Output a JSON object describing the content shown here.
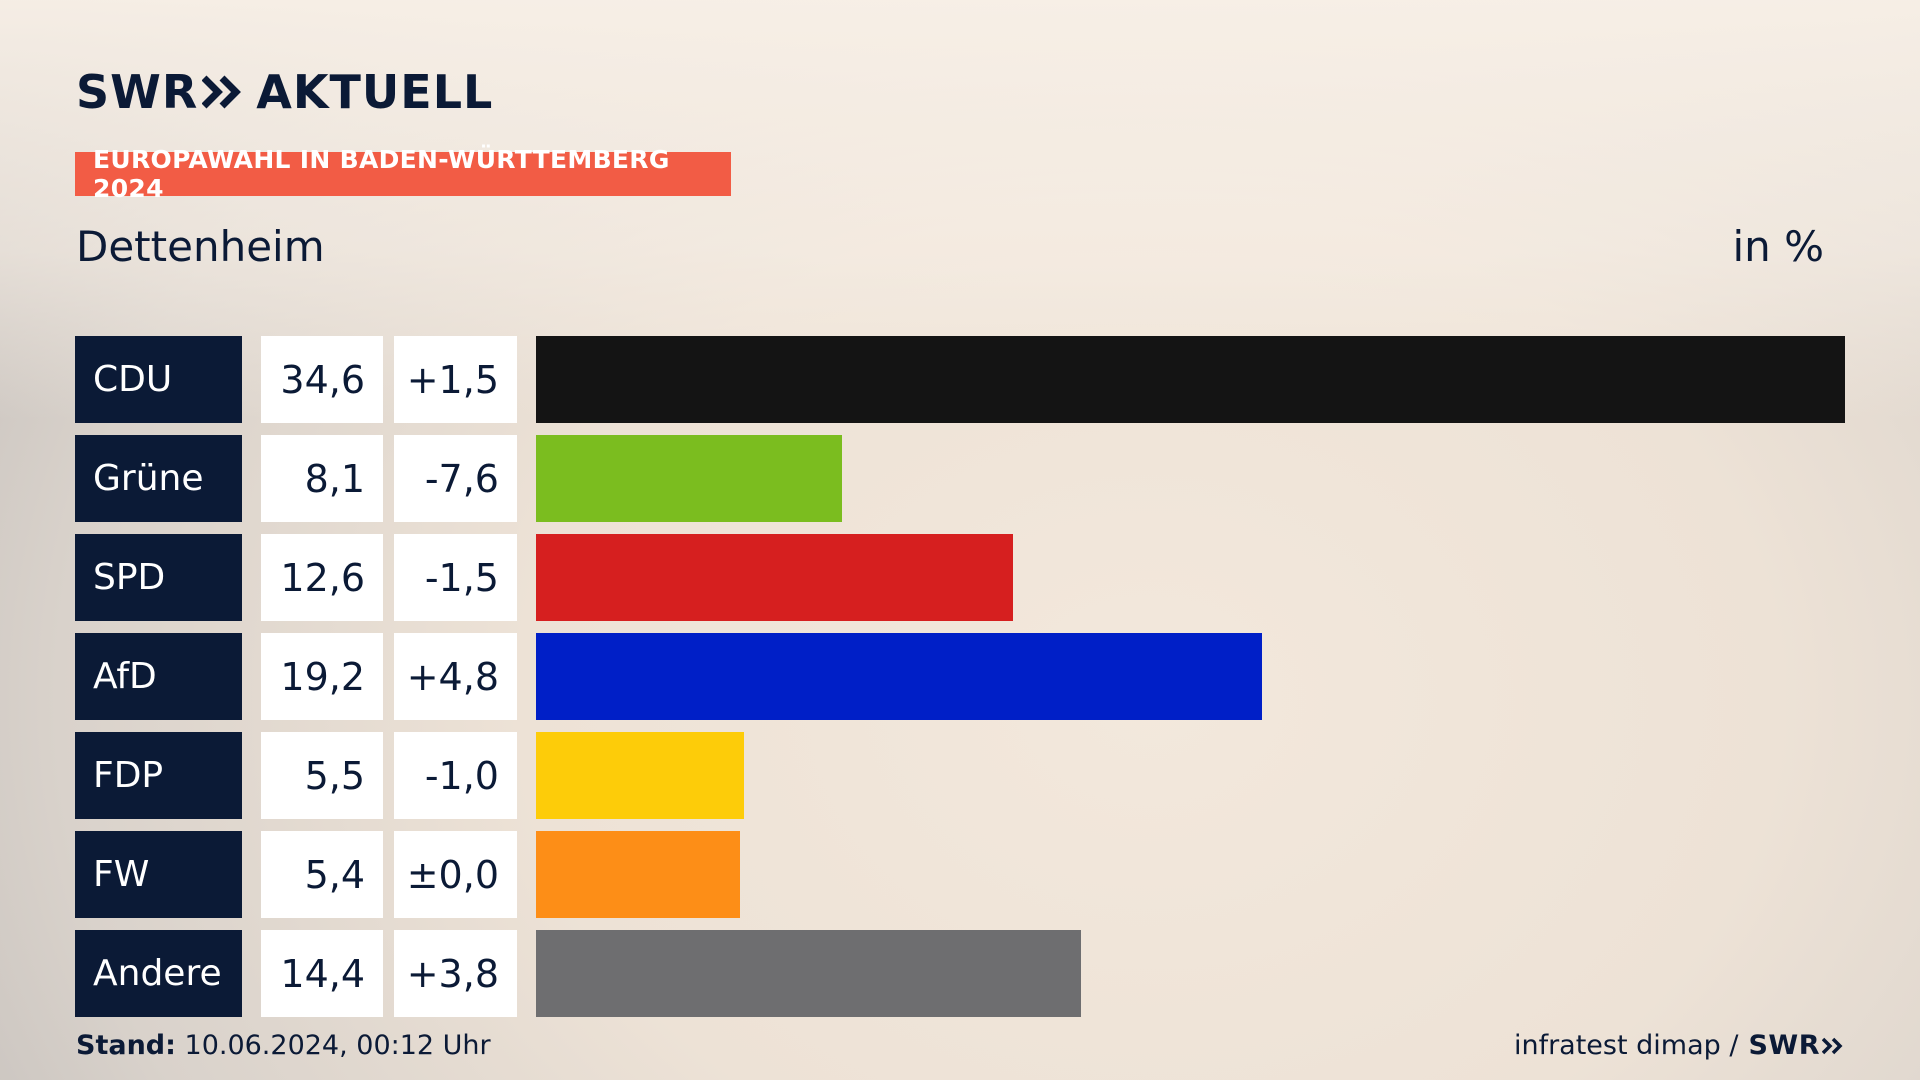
{
  "header": {
    "logo_text_left": "SWR",
    "logo_text_right": "AKTUELL",
    "banner": "EUROPAWAHL IN BADEN-WÜRTTEMBERG 2024",
    "place": "Dettenheim",
    "unit": "in %"
  },
  "colors": {
    "navy": "#0b1a36",
    "banner": "#f25c45"
  },
  "chart_data": {
    "type": "bar",
    "orientation": "horizontal",
    "title": "Dettenheim",
    "unit": "in %",
    "categories": [
      "CDU",
      "Grüne",
      "SPD",
      "AfD",
      "FDP",
      "FW",
      "Andere"
    ],
    "values": [
      34.6,
      8.1,
      12.6,
      19.2,
      5.5,
      5.4,
      14.4
    ],
    "value_labels": [
      "34,6",
      "8,1",
      "12,6",
      "19,2",
      "5,5",
      "5,4",
      "14,4"
    ],
    "change_labels": [
      "+1,5",
      "-7,6",
      "-1,5",
      "+4,8",
      "-1,0",
      "±0,0",
      "+3,8"
    ],
    "colors": [
      "#141414",
      "#7bbd1f",
      "#d61f1f",
      "#001fc7",
      "#fdcc09",
      "#fd8e17",
      "#6e6e70"
    ]
  },
  "footer": {
    "stand_label": "Stand:",
    "stand_value": "10.06.2024, 00:12 Uhr",
    "source": "infratest dimap /",
    "source_logo": "SWR"
  }
}
